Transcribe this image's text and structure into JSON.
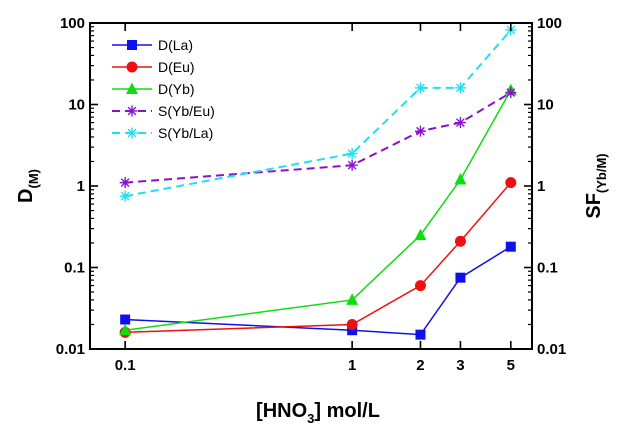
{
  "chart_data": {
    "type": "line",
    "x": [
      0.1,
      1,
      2,
      3,
      5
    ],
    "xlabel": {
      "prefix": "[HNO",
      "sub": "3",
      "suffix": "] mol/L"
    },
    "xscale": "log",
    "xlim": [
      0.07,
      6.2
    ],
    "xticks": [
      {
        "value": 0.1,
        "label": "0.1"
      },
      {
        "value": 1,
        "label": "1"
      },
      {
        "value": 2,
        "label": "2"
      },
      {
        "value": 3,
        "label": "3"
      },
      {
        "value": 5,
        "label": "5"
      }
    ],
    "ylabel_left": {
      "main": "D",
      "sub": "(M)"
    },
    "ylabel_right": {
      "main": "SF",
      "sub": "(Yb/M)"
    },
    "yscale": "log",
    "ylim": [
      0.01,
      100
    ],
    "yticks": [
      {
        "value": 0.01,
        "label": "0.01"
      },
      {
        "value": 0.1,
        "label": "0.1"
      },
      {
        "value": 1,
        "label": "1"
      },
      {
        "value": 10,
        "label": "10"
      },
      {
        "value": 100,
        "label": "100"
      }
    ],
    "legend_position": "top-left",
    "series": [
      {
        "name": "D(La)",
        "color": "#1010ee",
        "marker": "square",
        "dash": "solid",
        "values": [
          0.023,
          0.017,
          0.015,
          0.075,
          0.18
        ]
      },
      {
        "name": "D(Eu)",
        "color": "#ee1010",
        "marker": "circle",
        "dash": "solid",
        "values": [
          0.016,
          0.02,
          0.06,
          0.21,
          1.1
        ]
      },
      {
        "name": "D(Yb)",
        "color": "#10dd10",
        "marker": "triangle",
        "dash": "solid",
        "values": [
          0.017,
          0.04,
          0.25,
          1.2,
          15
        ]
      },
      {
        "name": "S(Yb/Eu)",
        "color": "#8a10cc",
        "marker": "star",
        "dash": "dashed",
        "values": [
          1.1,
          1.8,
          4.7,
          6,
          14
        ]
      },
      {
        "name": "S(Yb/La)",
        "color": "#20e0f0",
        "marker": "star",
        "dash": "dashed",
        "values": [
          0.75,
          2.5,
          16,
          16,
          82
        ]
      }
    ]
  }
}
